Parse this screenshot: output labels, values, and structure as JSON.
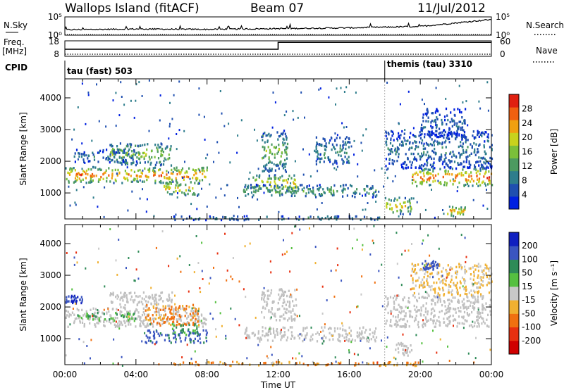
{
  "header": {
    "station": "Wallops Island (fitACF)",
    "beam": "Beam 07",
    "date": "11/Jul/2012"
  },
  "left_labels": {
    "nsky": "N.Sky",
    "freq": "Freq.",
    "freq_unit": "[MHz]",
    "cpid": "CPID"
  },
  "right_labels": {
    "nsearch": "N.Search",
    "nave": "Nave"
  },
  "cpid_modes": [
    "tau (fast) 503",
    "themis (tau) 3310"
  ],
  "colors": {
    "power_scale": [
      "#0020e0",
      "#1f4fb0",
      "#2e7d8c",
      "#4c9a60",
      "#7bbf3a",
      "#c8d21c",
      "#f0a010",
      "#f06010",
      "#e02010"
    ],
    "velocity_scale": [
      "#1020c0",
      "#3a55c0",
      "#2e8b57",
      "#55c040",
      "#c8c8c8",
      "#f0b030",
      "#f07010",
      "#e83010",
      "#d00000"
    ],
    "ground_scatter": "#c0c0c0"
  },
  "chart_data": [
    {
      "type": "line",
      "panel": "noise",
      "left_ticks": [
        "10^5",
        "10^0"
      ],
      "right_ticks": [
        "10^5",
        "10^0"
      ],
      "series": [
        {
          "name": "N.Sky",
          "x": [
            "00:00",
            "04:00",
            "08:00",
            "12:00",
            "16:00",
            "20:00",
            "00:00"
          ],
          "y_log10": [
            1.5,
            1.7,
            1.6,
            1.8,
            2.0,
            2.4,
            4.3
          ]
        },
        {
          "name": "N.Search",
          "x": [
            "00:00",
            "24:00"
          ],
          "y_log10": [
            0.05,
            0.05
          ]
        }
      ]
    },
    {
      "type": "line",
      "panel": "frequency",
      "left_ticks": [
        "18",
        "8"
      ],
      "right_ticks": [
        "60",
        "0"
      ],
      "series": [
        {
          "name": "Freq.",
          "x": [
            "00:00",
            "12:00",
            "12:00",
            "24:00"
          ],
          "y": [
            12.6,
            12.6,
            17.0,
            17.0
          ]
        },
        {
          "name": "Nave",
          "x": [
            "00:00",
            "24:00"
          ],
          "y": [
            8,
            8
          ]
        }
      ]
    },
    {
      "type": "heatmap",
      "panel": "power",
      "xlabel": "",
      "ylabel": "Slant Range [km]",
      "xlim": [
        "00:00",
        "24:00"
      ],
      "ylim": [
        180,
        4600
      ],
      "yticks": [
        "1000",
        "2000",
        "3000",
        "4000"
      ],
      "colorbar": {
        "label": "Power [dB]",
        "ticks": [
          "4",
          "8",
          "12",
          "16",
          "20",
          "24",
          "28"
        ],
        "range": [
          0,
          30
        ]
      },
      "bands": [
        {
          "t": [
            0.0,
            8.0
          ],
          "range": [
            1350,
            1850
          ],
          "value": 24
        },
        {
          "t": [
            2.5,
            6.0
          ],
          "range": [
            1900,
            2600
          ],
          "value": 16
        },
        {
          "t": [
            5.5,
            7.5
          ],
          "range": [
            950,
            1400
          ],
          "value": 20
        },
        {
          "t": [
            0.5,
            4.0
          ],
          "range": [
            2000,
            2400
          ],
          "value": 8
        },
        {
          "t": [
            10.5,
            13.0
          ],
          "range": [
            1050,
            1600
          ],
          "value": 20
        },
        {
          "t": [
            10.0,
            17.5
          ],
          "range": [
            900,
            1300
          ],
          "value": 12
        },
        {
          "t": [
            11.0,
            12.5
          ],
          "range": [
            1700,
            3000
          ],
          "value": 14
        },
        {
          "t": [
            14.0,
            16.0
          ],
          "range": [
            1900,
            2800
          ],
          "value": 10
        },
        {
          "t": [
            18.0,
            19.5
          ],
          "range": [
            350,
            900
          ],
          "value": 20
        },
        {
          "t": [
            19.5,
            24.0
          ],
          "range": [
            1250,
            1800
          ],
          "value": 26
        },
        {
          "t": [
            18.0,
            24.0
          ],
          "range": [
            1800,
            3000
          ],
          "value": 8
        },
        {
          "t": [
            20.0,
            22.5
          ],
          "range": [
            2800,
            3700
          ],
          "value": 6
        },
        {
          "t": [
            21.5,
            22.5
          ],
          "range": [
            300,
            600
          ],
          "value": 22
        },
        {
          "t": [
            6.0,
            18.0
          ],
          "range": [
            180,
            300
          ],
          "value": 10
        }
      ]
    },
    {
      "type": "heatmap",
      "panel": "velocity",
      "xlabel": "Time UT",
      "ylabel": "Slant Range [km]",
      "xlim": [
        "00:00",
        "24:00"
      ],
      "ylim": [
        180,
        4600
      ],
      "xticks": [
        "00:00",
        "04:00",
        "08:00",
        "12:00",
        "16:00",
        "20:00",
        "00:00"
      ],
      "yticks": [
        "1000",
        "2000",
        "3000",
        "4000"
      ],
      "colorbar": {
        "label": "Velocity [m s⁻¹]",
        "ticks": [
          "200",
          "100",
          "50",
          "15",
          "-15",
          "-50",
          "-100",
          "-200"
        ],
        "range": [
          -250,
          250
        ]
      },
      "bands": [
        {
          "t": [
            0.0,
            8.0
          ],
          "range": [
            1400,
            2000
          ],
          "value": "ground"
        },
        {
          "t": [
            2.5,
            6.0
          ],
          "range": [
            1950,
            2500
          ],
          "value": "ground"
        },
        {
          "t": [
            0.5,
            4.0
          ],
          "range": [
            1600,
            1850
          ],
          "value": 40
        },
        {
          "t": [
            4.5,
            7.5
          ],
          "range": [
            1450,
            2100
          ],
          "value": -60
        },
        {
          "t": [
            4.5,
            8.0
          ],
          "range": [
            900,
            1300
          ],
          "value": 120
        },
        {
          "t": [
            6.0,
            7.5
          ],
          "range": [
            1150,
            1500
          ],
          "value": 60
        },
        {
          "t": [
            0.0,
            1.0
          ],
          "range": [
            2150,
            2400
          ],
          "value": 200
        },
        {
          "t": [
            10.0,
            17.5
          ],
          "range": [
            950,
            1400
          ],
          "value": "ground"
        },
        {
          "t": [
            11.0,
            13.0
          ],
          "range": [
            1600,
            2600
          ],
          "value": "ground"
        },
        {
          "t": [
            18.0,
            24.0
          ],
          "range": [
            1400,
            2400
          ],
          "value": "ground"
        },
        {
          "t": [
            18.5,
            19.5
          ],
          "range": [
            500,
            900
          ],
          "value": "ground"
        },
        {
          "t": [
            19.5,
            24.0
          ],
          "range": [
            2400,
            3400
          ],
          "value": -20
        },
        {
          "t": [
            20.0,
            21.0
          ],
          "range": [
            3200,
            3500
          ],
          "value": 180
        },
        {
          "t": [
            6.0,
            20.0
          ],
          "range": [
            180,
            300
          ],
          "value": -40
        }
      ]
    }
  ]
}
